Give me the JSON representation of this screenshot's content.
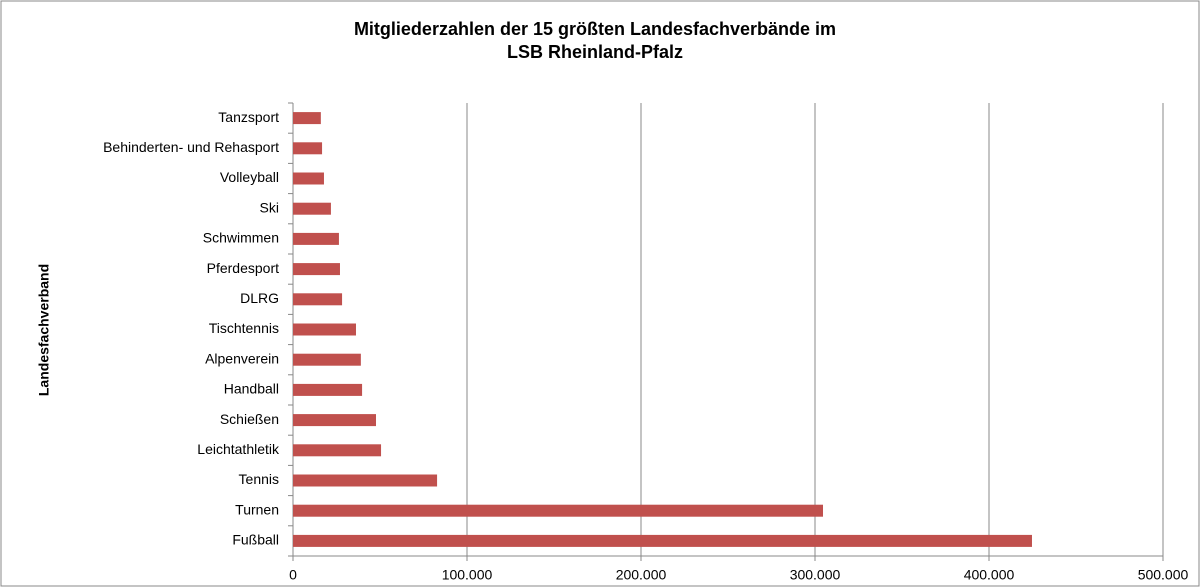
{
  "chart_data": {
    "type": "hbar",
    "title": [
      "Mitgliederzahlen der 15 größten Landesfachverbände im",
      "LSB Rheinland-Pfalz"
    ],
    "y_label": "Landesfachverband",
    "categories": [
      "Fußball",
      "Turnen",
      "Tennis",
      "Leichtathletik",
      "Schießen",
      "Handball",
      "Alpenverein",
      "Tischtennis",
      "DLRG",
      "Pferdesport",
      "Schwimmen",
      "Ski",
      "Volleyball",
      "Behinderten- und Rehasport",
      "Tanzsport"
    ],
    "values": [
      424700,
      304600,
      82800,
      50600,
      47700,
      39700,
      39000,
      36200,
      28200,
      27000,
      26400,
      21800,
      17800,
      16700,
      16000
    ],
    "color": "#c0504d",
    "xlim": [
      0,
      500000
    ],
    "xticks": [
      0,
      {
        "value": 100000,
        "label": "100.000"
      },
      {
        "value": 200000,
        "label": "200.000"
      },
      {
        "value": 300000,
        "label": "300.000"
      },
      {
        "value": 400000,
        "label": "400.000"
      },
      {
        "value": 500000,
        "label": "500.000"
      }
    ],
    "grid": true
  }
}
